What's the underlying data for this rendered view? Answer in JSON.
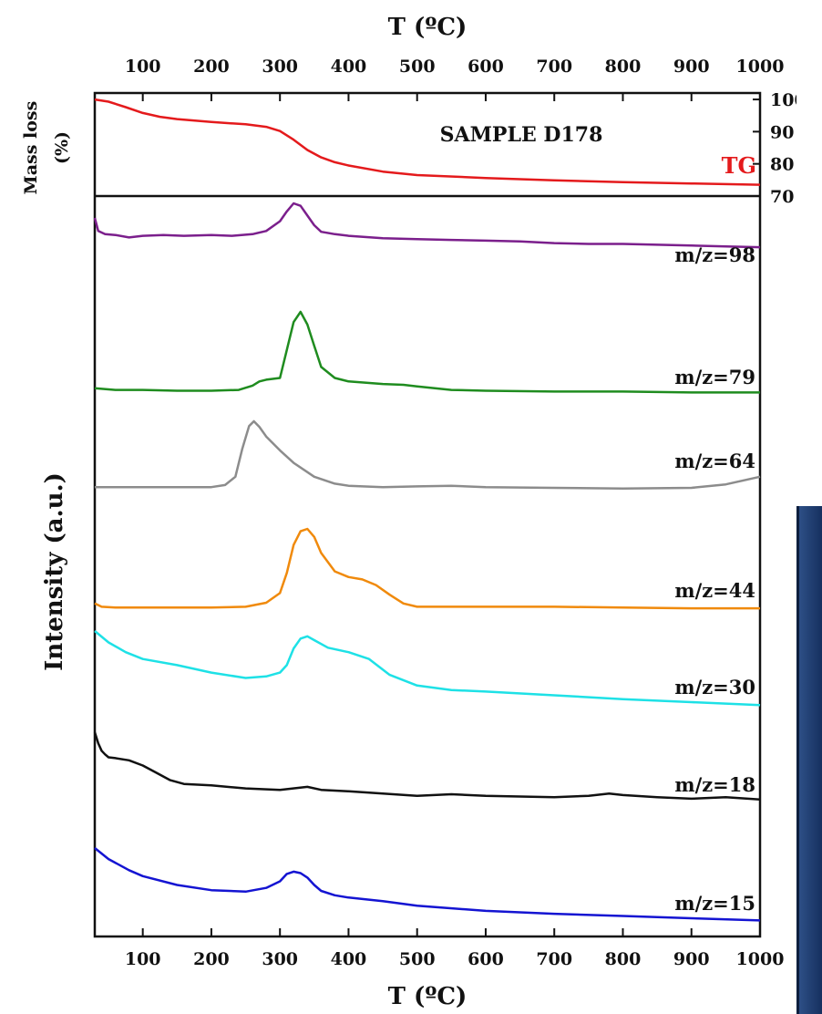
{
  "chart_data": {
    "type": "line",
    "xlabel_top": "T (ºC)",
    "xlabel_bottom": "T (ºC)",
    "xlim": [
      30,
      1000
    ],
    "x_ticks": [
      100,
      200,
      300,
      400,
      500,
      600,
      700,
      800,
      900,
      1000
    ],
    "tg_panel": {
      "ylabel_line1": "Mass loss",
      "ylabel_line2": "(%)",
      "ylim": [
        70,
        102
      ],
      "y_ticks": [
        70,
        80,
        90,
        100
      ],
      "annotation": "SAMPLE D178",
      "series": [
        {
          "name": "TG",
          "color": "#e41a1c",
          "x": [
            30,
            50,
            75,
            100,
            125,
            150,
            200,
            250,
            280,
            300,
            320,
            340,
            360,
            380,
            400,
            450,
            500,
            600,
            700,
            800,
            900,
            1000
          ],
          "y": [
            100,
            99.3,
            97.6,
            95.8,
            94.6,
            93.9,
            93.0,
            92.3,
            91.5,
            90.2,
            87.5,
            84.3,
            82.0,
            80.5,
            79.5,
            77.6,
            76.5,
            75.6,
            74.9,
            74.3,
            73.9,
            73.5
          ]
        }
      ]
    },
    "ms_panel": {
      "ylabel": "Intensity (a.u.)",
      "series": [
        {
          "name": "m/z=98",
          "color": "#7b1f8c",
          "x": [
            30,
            35,
            45,
            60,
            80,
            100,
            130,
            160,
            200,
            230,
            260,
            280,
            300,
            310,
            320,
            330,
            340,
            350,
            360,
            380,
            400,
            450,
            500,
            550,
            600,
            650,
            700,
            750,
            800,
            850,
            900,
            950,
            1000
          ],
          "y": [
            0.82,
            0.66,
            0.62,
            0.61,
            0.58,
            0.6,
            0.61,
            0.6,
            0.61,
            0.6,
            0.62,
            0.66,
            0.78,
            0.9,
            1.0,
            0.97,
            0.85,
            0.73,
            0.65,
            0.62,
            0.6,
            0.57,
            0.56,
            0.55,
            0.54,
            0.53,
            0.51,
            0.5,
            0.5,
            0.49,
            0.48,
            0.47,
            0.46
          ]
        },
        {
          "name": "m/z=79",
          "color": "#1f8c1f",
          "x": [
            30,
            60,
            100,
            150,
            200,
            240,
            260,
            270,
            280,
            300,
            310,
            320,
            330,
            340,
            350,
            360,
            380,
            400,
            450,
            480,
            500,
            550,
            600,
            700,
            800,
            900,
            1000
          ],
          "y": [
            0.1,
            0.08,
            0.08,
            0.07,
            0.07,
            0.08,
            0.13,
            0.18,
            0.2,
            0.22,
            0.55,
            0.88,
            1.0,
            0.85,
            0.6,
            0.35,
            0.22,
            0.18,
            0.15,
            0.14,
            0.12,
            0.08,
            0.07,
            0.06,
            0.06,
            0.05,
            0.05
          ]
        },
        {
          "name": "m/z=64",
          "color": "#8c8c8c",
          "x": [
            30,
            100,
            150,
            200,
            220,
            235,
            245,
            255,
            262,
            270,
            280,
            300,
            320,
            350,
            380,
            400,
            450,
            500,
            550,
            600,
            700,
            800,
            900,
            950,
            1000
          ],
          "y": [
            0.05,
            0.05,
            0.05,
            0.05,
            0.08,
            0.2,
            0.6,
            0.93,
            1.0,
            0.92,
            0.78,
            0.58,
            0.4,
            0.2,
            0.1,
            0.07,
            0.05,
            0.06,
            0.07,
            0.05,
            0.04,
            0.03,
            0.04,
            0.09,
            0.2
          ]
        },
        {
          "name": "m/z=44",
          "color": "#f08a0c",
          "x": [
            30,
            40,
            60,
            100,
            150,
            200,
            250,
            280,
            300,
            310,
            320,
            330,
            340,
            350,
            360,
            380,
            400,
            420,
            440,
            460,
            480,
            500,
            550,
            600,
            700,
            800,
            900,
            1000
          ],
          "y": [
            0.07,
            0.03,
            0.02,
            0.02,
            0.02,
            0.02,
            0.03,
            0.08,
            0.2,
            0.45,
            0.8,
            0.97,
            1.0,
            0.9,
            0.7,
            0.47,
            0.4,
            0.37,
            0.3,
            0.18,
            0.07,
            0.03,
            0.03,
            0.03,
            0.03,
            0.02,
            0.01,
            0.01
          ]
        },
        {
          "name": "m/z=30",
          "color": "#1ee1e6",
          "x": [
            30,
            50,
            75,
            100,
            150,
            200,
            250,
            280,
            300,
            310,
            320,
            330,
            340,
            350,
            370,
            400,
            430,
            460,
            500,
            550,
            600,
            700,
            800,
            900,
            1000
          ],
          "y": [
            1.0,
            0.85,
            0.72,
            0.63,
            0.55,
            0.45,
            0.38,
            0.4,
            0.45,
            0.55,
            0.77,
            0.9,
            0.93,
            0.88,
            0.78,
            0.72,
            0.63,
            0.42,
            0.28,
            0.22,
            0.2,
            0.15,
            0.1,
            0.06,
            0.02
          ]
        },
        {
          "name": "m/z=18",
          "color": "#111111",
          "x": [
            30,
            35,
            40,
            45,
            50,
            60,
            80,
            100,
            120,
            140,
            160,
            200,
            250,
            300,
            340,
            360,
            400,
            450,
            500,
            550,
            600,
            650,
            700,
            750,
            780,
            800,
            850,
            900,
            950,
            1000
          ],
          "y": [
            1.0,
            0.85,
            0.75,
            0.7,
            0.66,
            0.65,
            0.62,
            0.55,
            0.45,
            0.35,
            0.3,
            0.28,
            0.24,
            0.22,
            0.26,
            0.22,
            0.2,
            0.17,
            0.14,
            0.16,
            0.14,
            0.13,
            0.12,
            0.14,
            0.17,
            0.15,
            0.12,
            0.1,
            0.12,
            0.09
          ]
        },
        {
          "name": "m/z=15",
          "color": "#1414d2",
          "x": [
            30,
            50,
            80,
            100,
            150,
            200,
            250,
            280,
            300,
            310,
            320,
            330,
            340,
            350,
            360,
            380,
            400,
            450,
            500,
            600,
            700,
            800,
            900,
            1000
          ],
          "y": [
            1.0,
            0.85,
            0.7,
            0.62,
            0.5,
            0.43,
            0.41,
            0.46,
            0.55,
            0.65,
            0.68,
            0.66,
            0.6,
            0.5,
            0.42,
            0.36,
            0.33,
            0.28,
            0.22,
            0.15,
            0.11,
            0.08,
            0.05,
            0.02
          ]
        }
      ]
    }
  }
}
